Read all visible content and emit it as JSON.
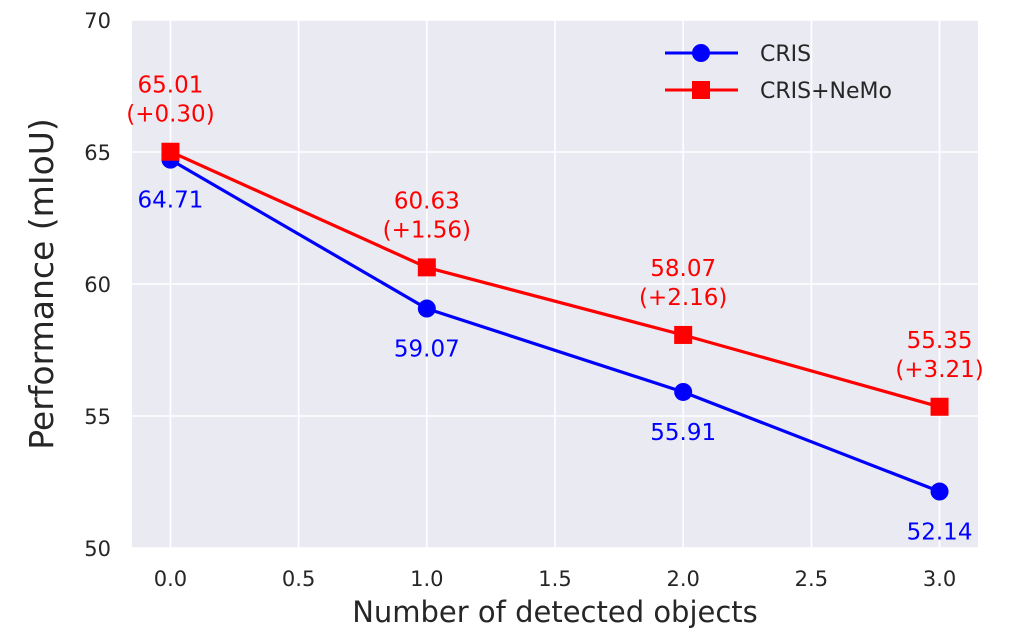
{
  "chart_data": {
    "type": "line",
    "title": "",
    "xlabel": "Number of detected objects",
    "ylabel": "Performance (mIoU)",
    "xlim": [
      -0.15,
      3.15
    ],
    "ylim": [
      50,
      70
    ],
    "grid": true,
    "legend_position": "top-right",
    "xticks": [
      "0.0",
      "0.5",
      "1.0",
      "1.5",
      "2.0",
      "2.5",
      "3.0"
    ],
    "yticks": [
      "50",
      "55",
      "60",
      "65",
      "70"
    ],
    "x": [
      0.0,
      1.0,
      2.0,
      3.0
    ],
    "series": [
      {
        "name": "CRIS",
        "color": "#0000ff",
        "marker": "circle",
        "values": [
          64.71,
          59.07,
          55.91,
          52.14
        ],
        "labels": [
          "64.71",
          "59.07",
          "55.91",
          "52.14"
        ]
      },
      {
        "name": "CRIS+NeMo",
        "color": "#ff0000",
        "marker": "square",
        "values": [
          65.01,
          60.63,
          58.07,
          55.35
        ],
        "labels": [
          "65.01",
          "60.63",
          "58.07",
          "55.35"
        ],
        "deltas": [
          "(+0.30)",
          "(+1.56)",
          "(+2.16)",
          "(+3.21)"
        ]
      }
    ]
  }
}
